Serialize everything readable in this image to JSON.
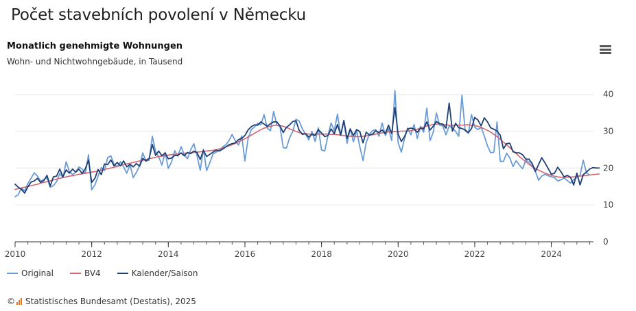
{
  "page_title": "Počet stavebních povolení v Německu",
  "menu_icon": "hamburger-menu-icon",
  "credits": {
    "copyright_symbol": "©",
    "logo_icon": "destatis-logo-icon",
    "text": "Statistisches Bundesamt (Destatis), 2025"
  },
  "chart_data": {
    "type": "line",
    "title": "Monatlich genehmigte Wohnungen",
    "subtitle": "Wohn- und Nichtwohngebäude, in Tausend",
    "xlim": [
      2010,
      2025.1
    ],
    "ylim": [
      0,
      40
    ],
    "x_ticks": [
      2010,
      2012,
      2014,
      2016,
      2018,
      2020,
      2022,
      2024
    ],
    "y_ticks": [
      0,
      10,
      20,
      30,
      40
    ],
    "grid": true,
    "legend_position": "bottom-left",
    "x_start": 2010.0,
    "x_step": 0.0833333,
    "series": [
      {
        "name": "Original",
        "color": "#6a9bd6",
        "values": [
          12.2,
          12.8,
          14.6,
          13.8,
          15.8,
          17.2,
          18.7,
          17.8,
          16.4,
          16.9,
          17.3,
          14.8,
          15.2,
          16.3,
          18.5,
          17.4,
          21.7,
          19.1,
          18.2,
          18.9,
          20.3,
          19.7,
          18.5,
          23.6,
          14.1,
          15.4,
          17.8,
          20.1,
          19.3,
          22.8,
          23.3,
          21.0,
          20.4,
          21.7,
          20.3,
          18.6,
          20.9,
          17.4,
          18.8,
          20.6,
          24.1,
          21.9,
          22.1,
          28.6,
          24.5,
          23.0,
          20.8,
          24.2,
          19.9,
          21.6,
          24.7,
          23.2,
          25.8,
          23.6,
          22.5,
          24.9,
          26.6,
          23.3,
          19.4,
          25.1,
          19.3,
          21.4,
          23.8,
          24.3,
          24.9,
          25.7,
          26.3,
          27.4,
          29.1,
          27.3,
          26.2,
          28.7,
          21.9,
          28.0,
          30.4,
          31.1,
          32.1,
          31.7,
          34.5,
          30.8,
          30.1,
          35.3,
          31.7,
          31.2,
          25.5,
          25.4,
          28.2,
          29.9,
          33.2,
          32.7,
          30.6,
          29.2,
          27.6,
          29.9,
          27.2,
          30.9,
          24.9,
          24.6,
          28.7,
          32.2,
          30.1,
          34.6,
          28.9,
          32.7,
          26.7,
          30.6,
          27.1,
          30.1,
          25.8,
          22.0,
          26.9,
          29.2,
          30.1,
          30.4,
          28.6,
          32.2,
          28.8,
          30.7,
          27.4,
          41.0,
          26.9,
          24.3,
          27.9,
          30.8,
          29.0,
          31.8,
          28.0,
          31.3,
          29.7,
          36.2,
          27.4,
          29.7,
          34.9,
          31.6,
          31.4,
          29.0,
          31.4,
          30.8,
          29.9,
          28.6,
          39.7,
          30.1,
          29.4,
          34.5,
          31.1,
          30.4,
          31.0,
          28.7,
          26.0,
          24.1,
          24.3,
          32.5,
          21.8,
          21.8,
          24.0,
          22.7,
          20.4,
          22.0,
          20.8,
          19.8,
          22.1,
          21.6,
          20.4,
          19.1,
          16.7,
          17.8,
          18.3,
          17.9,
          17.6,
          17.4,
          16.5,
          16.8,
          17.3,
          16.6,
          15.9,
          16.9,
          17.4,
          18.0,
          22.1,
          18.7,
          18.1
        ]
      },
      {
        "name": "BV4",
        "color": "#d0666f",
        "values": [
          14.2,
          14.4,
          14.6,
          14.8,
          15.0,
          15.2,
          15.4,
          15.6,
          15.9,
          16.1,
          16.3,
          16.5,
          16.8,
          17.0,
          17.2,
          17.4,
          17.6,
          17.8,
          17.9,
          18.1,
          18.3,
          18.4,
          18.6,
          18.7,
          18.9,
          19.0,
          19.2,
          19.4,
          19.6,
          19.8,
          20.0,
          20.2,
          20.4,
          20.7,
          20.9,
          21.1,
          21.3,
          21.5,
          21.7,
          21.9,
          22.1,
          22.3,
          22.5,
          22.7,
          22.9,
          23.1,
          23.2,
          23.4,
          23.5,
          23.6,
          23.7,
          23.8,
          23.9,
          24.0,
          24.1,
          24.1,
          24.2,
          24.3,
          24.4,
          24.5,
          24.6,
          24.7,
          24.8,
          25.0,
          25.2,
          25.4,
          25.7,
          26.0,
          26.3,
          26.7,
          27.1,
          27.5,
          27.9,
          28.4,
          28.9,
          29.4,
          29.9,
          30.4,
          30.8,
          31.1,
          31.3,
          31.5,
          31.6,
          31.5,
          31.3,
          31.0,
          30.6,
          30.3,
          29.9,
          29.6,
          29.4,
          29.3,
          29.2,
          29.2,
          29.2,
          29.2,
          29.2,
          29.2,
          29.2,
          29.1,
          29.1,
          29.0,
          28.9,
          28.8,
          28.7,
          28.6,
          28.5,
          28.5,
          28.5,
          28.6,
          28.7,
          28.9,
          29.0,
          29.2,
          29.4,
          29.5,
          29.7,
          29.8,
          29.9,
          29.9,
          29.9,
          30.0,
          30.0,
          30.0,
          30.1,
          30.3,
          30.5,
          30.8,
          31.1,
          31.4,
          31.6,
          31.8,
          31.9,
          31.9,
          31.8,
          31.7,
          31.6,
          31.6,
          31.6,
          31.6,
          31.6,
          31.7,
          31.7,
          31.6,
          31.5,
          31.3,
          31.0,
          30.6,
          30.2,
          29.7,
          29.1,
          28.5,
          27.8,
          27.0,
          26.3,
          25.5,
          24.7,
          23.9,
          23.1,
          22.4,
          21.7,
          21.0,
          20.4,
          19.9,
          19.4,
          19.0,
          18.6,
          18.3,
          18.0,
          17.8,
          17.6,
          17.5,
          17.5,
          17.5,
          17.5,
          17.6,
          17.7,
          17.8,
          17.9,
          18.0,
          18.1,
          18.2,
          18.3,
          18.4
        ]
      },
      {
        "name": "Kalender/Saison",
        "color": "#1d3f73",
        "values": [
          15.6,
          14.8,
          14.2,
          13.2,
          14.9,
          16.2,
          16.5,
          17.2,
          16.1,
          16.6,
          18.0,
          15.1,
          17.6,
          17.8,
          19.7,
          17.6,
          19.5,
          18.6,
          19.7,
          18.9,
          19.7,
          18.5,
          19.8,
          22.1,
          16.1,
          17.2,
          19.6,
          18.2,
          21.1,
          20.9,
          22.2,
          20.6,
          21.5,
          20.6,
          21.9,
          20.3,
          21.0,
          20.3,
          21.2,
          20.5,
          22.6,
          21.9,
          22.6,
          26.4,
          23.4,
          24.6,
          23.3,
          24.1,
          22.5,
          22.7,
          23.4,
          23.4,
          24.1,
          23.3,
          24.2,
          23.9,
          24.6,
          24.2,
          22.3,
          24.8,
          23.1,
          23.7,
          24.3,
          24.8,
          24.6,
          25.1,
          25.7,
          26.3,
          26.6,
          26.8,
          27.7,
          28.0,
          28.8,
          30.3,
          31.2,
          31.7,
          31.6,
          32.5,
          31.9,
          31.3,
          32.0,
          32.5,
          32.5,
          31.4,
          29.6,
          31.0,
          31.7,
          32.6,
          32.8,
          30.2,
          29.1,
          29.3,
          28.4,
          29.1,
          28.8,
          30.4,
          29.5,
          28.5,
          28.8,
          30.6,
          29.3,
          31.8,
          28.9,
          32.9,
          28.0,
          30.6,
          28.8,
          30.4,
          29.9,
          26.8,
          29.7,
          28.9,
          29.2,
          30.1,
          29.6,
          30.3,
          29.3,
          31.6,
          29.3,
          36.4,
          29.2,
          27.2,
          28.5,
          30.6,
          30.8,
          30.6,
          29.7,
          30.8,
          30.6,
          32.5,
          30.3,
          31.3,
          32.6,
          32.0,
          31.9,
          30.8,
          37.6,
          30.0,
          32.1,
          30.9,
          30.7,
          30.3,
          29.6,
          30.7,
          33.7,
          33.0,
          31.4,
          33.6,
          32.5,
          30.9,
          30.5,
          30.0,
          28.9,
          25.2,
          26.6,
          26.7,
          24.4,
          24.1,
          24.1,
          23.6,
          22.4,
          22.4,
          21.2,
          19.1,
          20.9,
          22.8,
          21.4,
          19.9,
          18.3,
          18.6,
          20.2,
          19.0,
          17.6,
          18.0,
          17.5,
          15.4,
          18.6,
          15.4,
          18.2,
          18.9,
          19.7,
          20.1,
          20.0,
          20.0
        ]
      }
    ]
  }
}
